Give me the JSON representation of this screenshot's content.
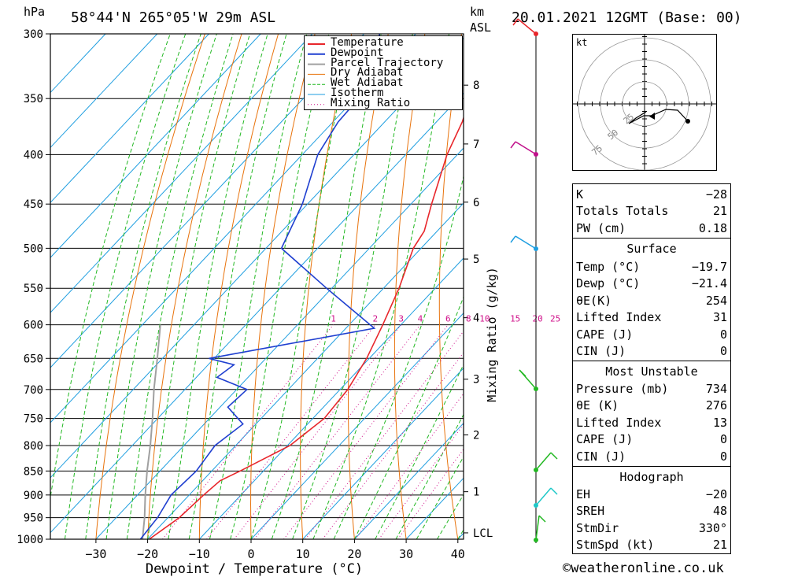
{
  "header": {
    "location": "58°44'N  265°05'W  29m  ASL",
    "datetime": "20.01.2021  12GMT  (Base: 00)",
    "hpa_label": "hPa",
    "km_label": "km",
    "asl_label": "ASL"
  },
  "chart_data": {
    "type": "skew-t",
    "xlabel": "Dewpoint / Temperature (°C)",
    "right_label": "Mixing Ratio (g/kg)",
    "xlim": [
      -40,
      40
    ],
    "ylim_hpa": [
      1000,
      300
    ],
    "pressure_ticks": [
      300,
      350,
      400,
      450,
      500,
      550,
      600,
      650,
      700,
      750,
      800,
      850,
      900,
      950,
      1000
    ],
    "x_ticks": [
      -30,
      -20,
      -10,
      0,
      10,
      20,
      30,
      40
    ],
    "km_ticks": [
      {
        "label": "8",
        "p": 339
      },
      {
        "label": "7",
        "p": 390
      },
      {
        "label": "6",
        "p": 448
      },
      {
        "label": "5",
        "p": 513
      },
      {
        "label": "4",
        "p": 590
      },
      {
        "label": "3",
        "p": 683
      },
      {
        "label": "2",
        "p": 780
      },
      {
        "label": "1",
        "p": 893
      },
      {
        "label": "LCL",
        "p": 985
      }
    ],
    "mixing_ratio_labels": [
      "1",
      "2",
      "3",
      "4",
      "6",
      "8",
      "10",
      "15",
      "20",
      "25"
    ],
    "legend": [
      "Temperature",
      "Dewpoint",
      "Parcel Trajectory",
      "Dry Adiabat",
      "Wet Adiabat",
      "Isotherm",
      "Mixing Ratio"
    ],
    "colors": {
      "temperature": "#e8262b",
      "dewpoint": "#1f3fd0",
      "parcel": "#a0a0a0",
      "dry_adiabat": "#e8730c",
      "wet_adiabat": "#22b822",
      "isotherm": "#1e9ee0",
      "mixing_ratio": "#d0108a"
    },
    "temperature": [
      {
        "p": 1000,
        "t": -19.7
      },
      {
        "p": 950,
        "t": -17.8
      },
      {
        "p": 900,
        "t": -17.2
      },
      {
        "p": 870,
        "t": -16.6
      },
      {
        "p": 850,
        "t": -14.5
      },
      {
        "p": 800,
        "t": -9.5
      },
      {
        "p": 750,
        "t": -7.8
      },
      {
        "p": 700,
        "t": -8.5
      },
      {
        "p": 650,
        "t": -10.5
      },
      {
        "p": 600,
        "t": -13.5
      },
      {
        "p": 550,
        "t": -17.0
      },
      {
        "p": 500,
        "t": -21.5
      },
      {
        "p": 480,
        "t": -22.5
      },
      {
        "p": 450,
        "t": -26.0
      },
      {
        "p": 400,
        "t": -32.0
      },
      {
        "p": 370,
        "t": -35.0
      },
      {
        "p": 335,
        "t": -40.0
      },
      {
        "p": 300,
        "t": -45.0
      }
    ],
    "dewpoint": [
      {
        "p": 1000,
        "t": -21.4
      },
      {
        "p": 950,
        "t": -22.0
      },
      {
        "p": 900,
        "t": -23.5
      },
      {
        "p": 850,
        "t": -23.0
      },
      {
        "p": 800,
        "t": -24.0
      },
      {
        "p": 760,
        "t": -22.5
      },
      {
        "p": 730,
        "t": -28.5
      },
      {
        "p": 700,
        "t": -28.0
      },
      {
        "p": 680,
        "t": -36.0
      },
      {
        "p": 660,
        "t": -35.0
      },
      {
        "p": 650,
        "t": -41.0
      },
      {
        "p": 605,
        "t": -14.5
      },
      {
        "p": 550,
        "t": -31.0
      },
      {
        "p": 500,
        "t": -47.0
      },
      {
        "p": 450,
        "t": -51.0
      },
      {
        "p": 400,
        "t": -57.0
      },
      {
        "p": 370,
        "t": -59.0
      },
      {
        "p": 335,
        "t": -59.5
      },
      {
        "p": 300,
        "t": -67.0
      }
    ],
    "parcel": [
      {
        "p": 1000,
        "t": -21.0
      },
      {
        "p": 950,
        "t": -24.5
      },
      {
        "p": 900,
        "t": -28.5
      },
      {
        "p": 850,
        "t": -32.5
      },
      {
        "p": 800,
        "t": -36.5
      },
      {
        "p": 750,
        "t": -41.0
      },
      {
        "p": 700,
        "t": -46.0
      },
      {
        "p": 650,
        "t": -51.0
      },
      {
        "p": 600,
        "t": -56.5
      }
    ],
    "wind_levels_hpa": [
      300,
      400,
      500,
      700,
      850,
      925,
      1000
    ]
  },
  "hodograph": {
    "unit": "kt",
    "ring_labels": [
      "25",
      "50",
      "75"
    ]
  },
  "indices": {
    "basic": [
      {
        "k": "K",
        "v": "-28"
      },
      {
        "k": "Totals Totals",
        "v": "21"
      },
      {
        "k": "PW (cm)",
        "v": "0.18"
      }
    ],
    "surface_title": "Surface",
    "surface": [
      {
        "k": "Temp (°C)",
        "v": "-19.7"
      },
      {
        "k": "Dewp (°C)",
        "v": "-21.4"
      },
      {
        "k": "θE(K)",
        "v": "254"
      },
      {
        "k": "Lifted Index",
        "v": "31"
      },
      {
        "k": "CAPE (J)",
        "v": "0"
      },
      {
        "k": "CIN (J)",
        "v": "0"
      }
    ],
    "mu_title": "Most Unstable",
    "mu": [
      {
        "k": "Pressure (mb)",
        "v": "734"
      },
      {
        "k": "θE (K)",
        "v": "276"
      },
      {
        "k": "Lifted Index",
        "v": "13"
      },
      {
        "k": "CAPE (J)",
        "v": "0"
      },
      {
        "k": "CIN (J)",
        "v": "0"
      }
    ],
    "hodo_title": "Hodograph",
    "hodo": [
      {
        "k": "EH",
        "v": "-20"
      },
      {
        "k": "SREH",
        "v": "48"
      },
      {
        "k": "StmDir",
        "v": "330°"
      },
      {
        "k": "StmSpd (kt)",
        "v": "21"
      }
    ]
  },
  "footer": {
    "credit": "©weatheronline.co.uk"
  }
}
